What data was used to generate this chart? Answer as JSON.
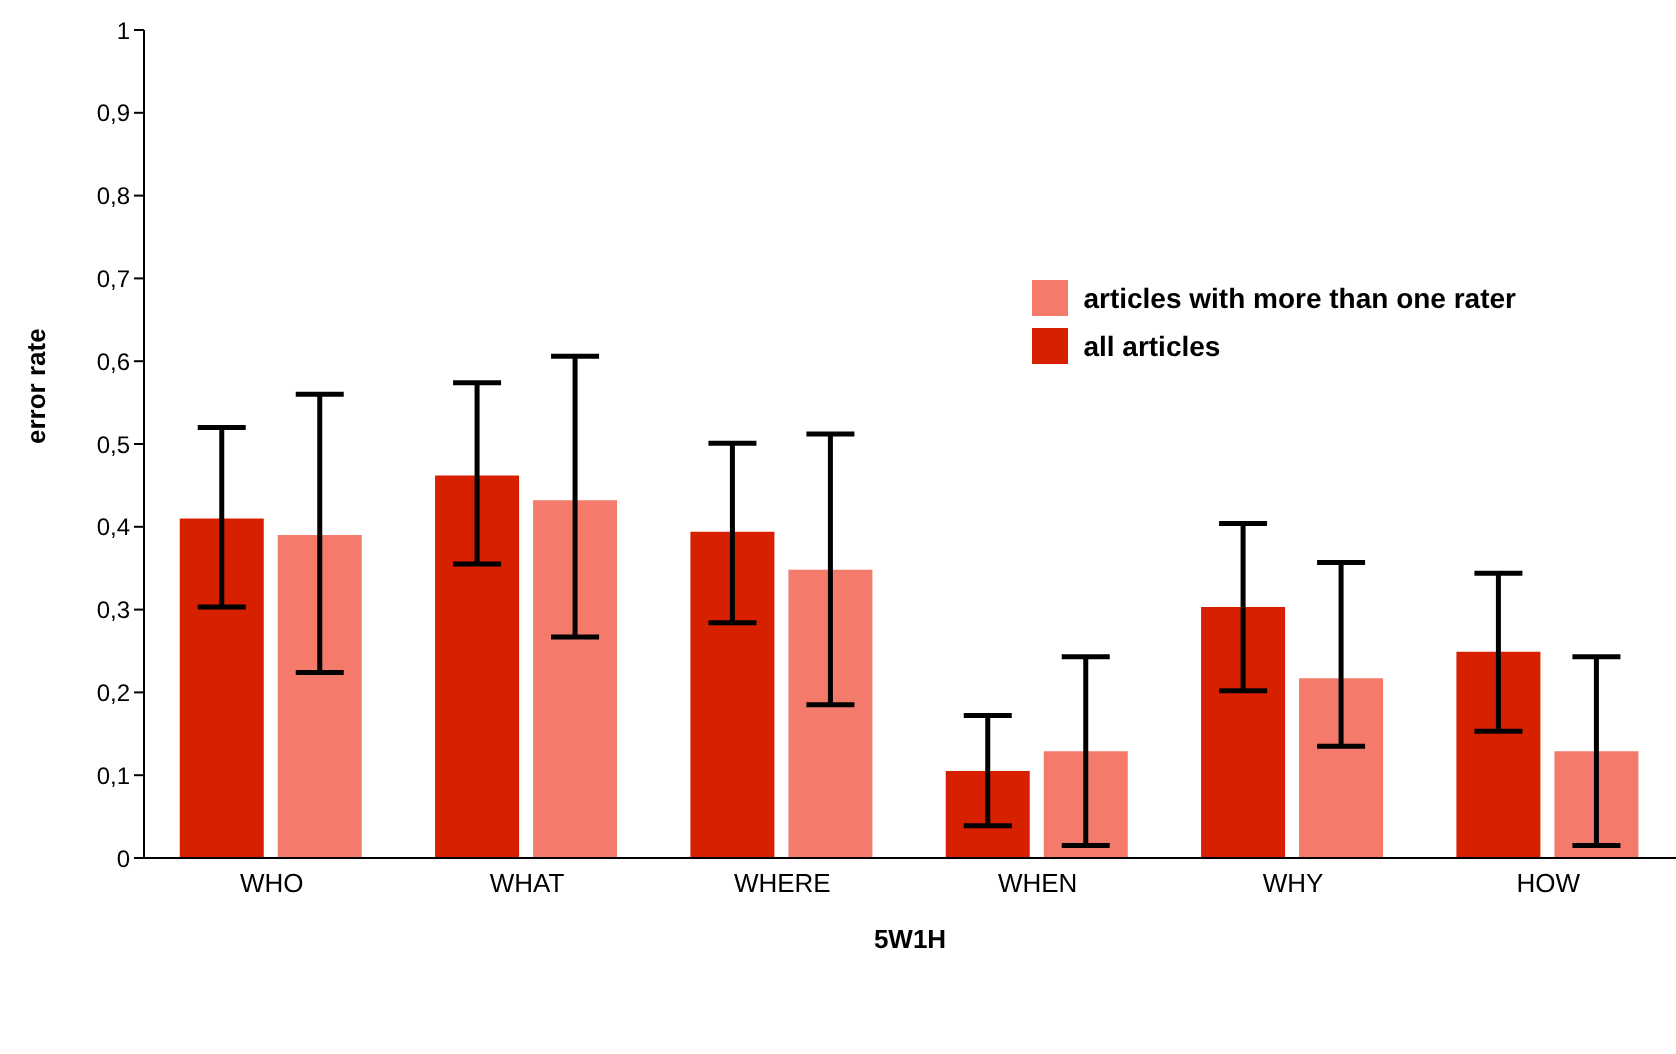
{
  "chart_data": {
    "type": "bar",
    "xlabel": "5W1H",
    "ylabel": "error rate",
    "categories": [
      "WHO",
      "WHAT",
      "WHERE",
      "WHEN",
      "WHY",
      "HOW"
    ],
    "series": [
      {
        "name": "all articles",
        "color": "#d62000",
        "values": [
          0.41,
          0.462,
          0.394,
          0.105,
          0.303,
          0.249
        ],
        "errors": [
          [
            0.303,
            0.52
          ],
          [
            0.355,
            0.574
          ],
          [
            0.284,
            0.501
          ],
          [
            0.039,
            0.172
          ],
          [
            0.202,
            0.404
          ],
          [
            0.153,
            0.344
          ]
        ]
      },
      {
        "name": "articles with more than one rater",
        "color": "#f47a6b",
        "values": [
          0.39,
          0.432,
          0.348,
          0.129,
          0.217,
          0.129
        ],
        "errors": [
          [
            0.224,
            0.56
          ],
          [
            0.267,
            0.606
          ],
          [
            0.185,
            0.512
          ],
          [
            0.015,
            0.243
          ],
          [
            0.135,
            0.357
          ],
          [
            0.015,
            0.243
          ]
        ]
      }
    ],
    "ylim": [
      0,
      1
    ],
    "yticks": [
      0,
      {
        "value": 0.1,
        "label": "0,1"
      },
      {
        "value": 0.2,
        "label": "0,2"
      },
      {
        "value": 0.3,
        "label": "0,3"
      },
      {
        "value": 0.4,
        "label": "0,4"
      },
      {
        "value": 0.5,
        "label": "0,5"
      },
      {
        "value": 0.6,
        "label": "0,6"
      },
      {
        "value": 0.7,
        "label": "0,7"
      },
      {
        "value": 0.8,
        "label": "0,8"
      },
      {
        "value": 0.9,
        "label": "0,9"
      },
      1
    ],
    "grid": false,
    "legend": "right"
  }
}
